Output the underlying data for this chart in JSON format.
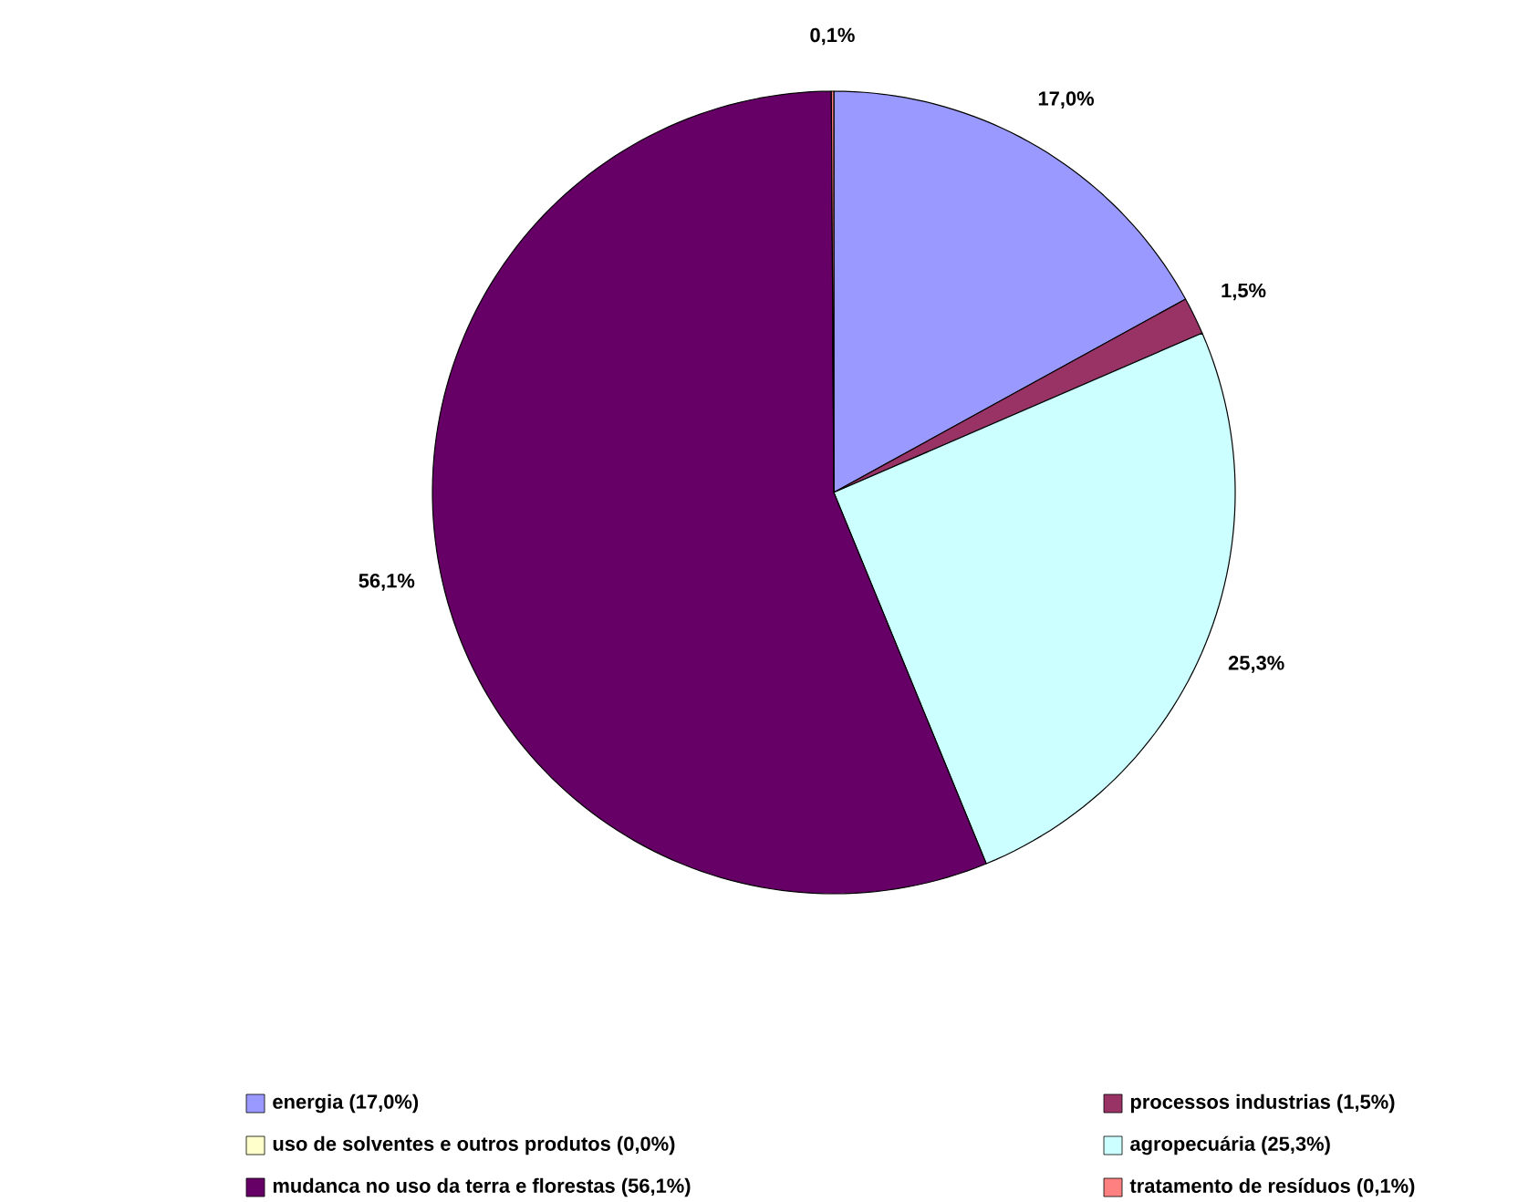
{
  "chart_data": {
    "type": "pie",
    "categories": [
      "energia (17,0%)",
      "processos industrias (1,5%)",
      "uso de solventes e outros produtos (0,0%)",
      "agropecuária (25,3%)",
      "mudanca no uso da terra e florestas (56,1%)",
      "tratamento de resíduos (0,1%)"
    ],
    "values": [
      17.0,
      1.5,
      0.0,
      25.3,
      56.1,
      0.1
    ],
    "colors": [
      "#9999ff",
      "#993366",
      "#ffffcc",
      "#ccffff",
      "#660066",
      "#ff8080"
    ],
    "value_labels": [
      "17,0%",
      "1,5%",
      null,
      "25,3%",
      "56,1%",
      "0,1%"
    ],
    "legend": "bottom"
  }
}
